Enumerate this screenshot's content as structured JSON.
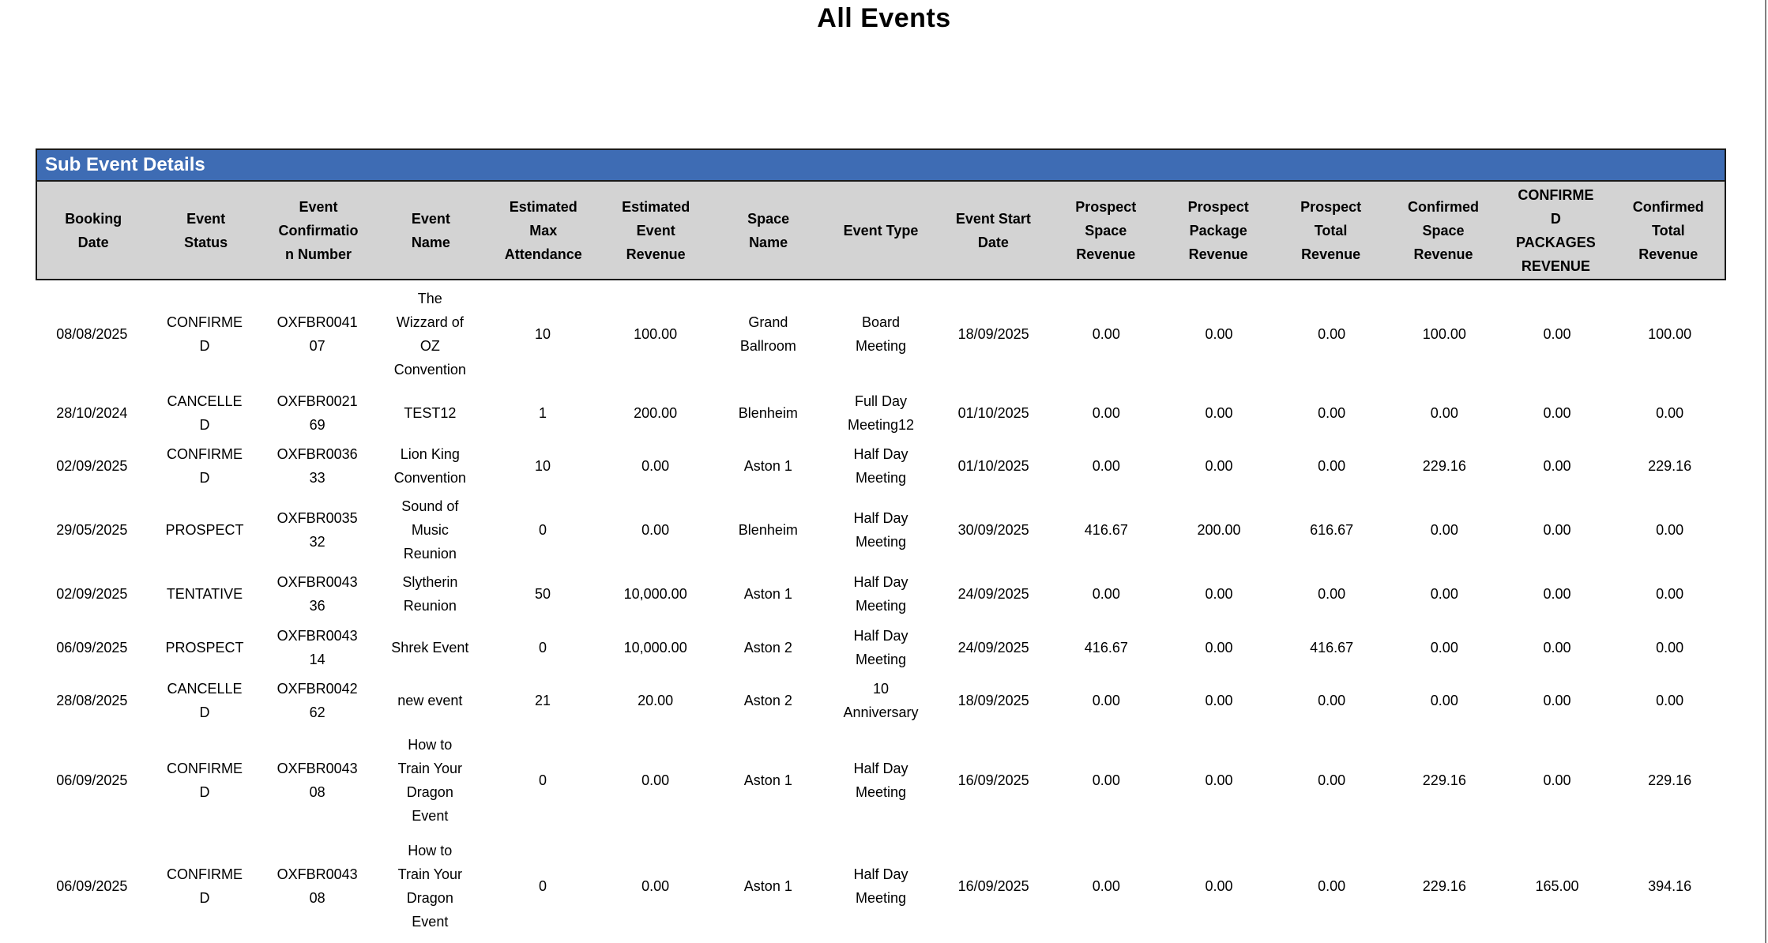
{
  "page": {
    "title": "All Events"
  },
  "section": {
    "title": "Sub Event Details"
  },
  "colors": {
    "banner_bg": "#3E6CB4",
    "banner_text": "#FFFFFF",
    "header_bg": "#D3D3D3",
    "border_color": "#1A1A1A",
    "page_edge": "#808080"
  },
  "table": {
    "columns": [
      "Booking\nDate",
      "Event\nStatus",
      "Event\nConfirmatio\nn Number",
      "Event\nName",
      "Estimated\nMax\nAttendance",
      "Estimated\nEvent\nRevenue",
      "Space\nName",
      "Event Type",
      "Event Start\nDate",
      "Prospect\nSpace\nRevenue",
      "Prospect\nPackage\nRevenue",
      "Prospect\nTotal\nRevenue",
      "Confirmed\nSpace\nRevenue",
      "CONFIRME\nD\nPACKAGES\nREVENUE",
      "Confirmed\nTotal\nRevenue"
    ],
    "rows": [
      [
        "08/08/2025",
        "CONFIRME\nD",
        "OXFBR0041\n07",
        "The\nWizzard of\nOZ\nConvention",
        "10",
        "100.00",
        "Grand\nBallroom",
        "Board\nMeeting",
        "18/09/2025",
        "0.00",
        "0.00",
        "0.00",
        "100.00",
        "0.00",
        "100.00"
      ],
      [
        "28/10/2024",
        "CANCELLE\nD",
        "OXFBR0021\n69",
        "TEST12",
        "1",
        "200.00",
        "Blenheim",
        "Full Day\nMeeting12",
        "01/10/2025",
        "0.00",
        "0.00",
        "0.00",
        "0.00",
        "0.00",
        "0.00"
      ],
      [
        "02/09/2025",
        "CONFIRME\nD",
        "OXFBR0036\n33",
        "Lion King\nConvention",
        "10",
        "0.00",
        "Aston 1",
        "Half Day\nMeeting",
        "01/10/2025",
        "0.00",
        "0.00",
        "0.00",
        "229.16",
        "0.00",
        "229.16"
      ],
      [
        "29/05/2025",
        "PROSPECT",
        "OXFBR0035\n32",
        "Sound of\nMusic\nReunion",
        "0",
        "0.00",
        "Blenheim",
        "Half Day\nMeeting",
        "30/09/2025",
        "416.67",
        "200.00",
        "616.67",
        "0.00",
        "0.00",
        "0.00"
      ],
      [
        "02/09/2025",
        "TENTATIVE",
        "OXFBR0043\n36",
        "Slytherin\nReunion",
        "50",
        "10,000.00",
        "Aston 1",
        "Half Day\nMeeting",
        "24/09/2025",
        "0.00",
        "0.00",
        "0.00",
        "0.00",
        "0.00",
        "0.00"
      ],
      [
        "06/09/2025",
        "PROSPECT",
        "OXFBR0043\n14",
        "Shrek Event",
        "0",
        "10,000.00",
        "Aston 2",
        "Half Day\nMeeting",
        "24/09/2025",
        "416.67",
        "0.00",
        "416.67",
        "0.00",
        "0.00",
        "0.00"
      ],
      [
        "28/08/2025",
        "CANCELLE\nD",
        "OXFBR0042\n62",
        "new event",
        "21",
        "20.00",
        "Aston 2",
        "10\nAnniversary",
        "18/09/2025",
        "0.00",
        "0.00",
        "0.00",
        "0.00",
        "0.00",
        "0.00"
      ],
      [
        "06/09/2025",
        "CONFIRME\nD",
        "OXFBR0043\n08",
        "How to\nTrain Your\nDragon\nEvent",
        "0",
        "0.00",
        "Aston 1",
        "Half Day\nMeeting",
        "16/09/2025",
        "0.00",
        "0.00",
        "0.00",
        "229.16",
        "0.00",
        "229.16"
      ],
      [
        "06/09/2025",
        "CONFIRME\nD",
        "OXFBR0043\n08",
        "How to\nTrain Your\nDragon\nEvent",
        "0",
        "0.00",
        "Aston 1",
        "Half Day\nMeeting",
        "16/09/2025",
        "0.00",
        "0.00",
        "0.00",
        "229.16",
        "165.00",
        "394.16"
      ]
    ]
  }
}
